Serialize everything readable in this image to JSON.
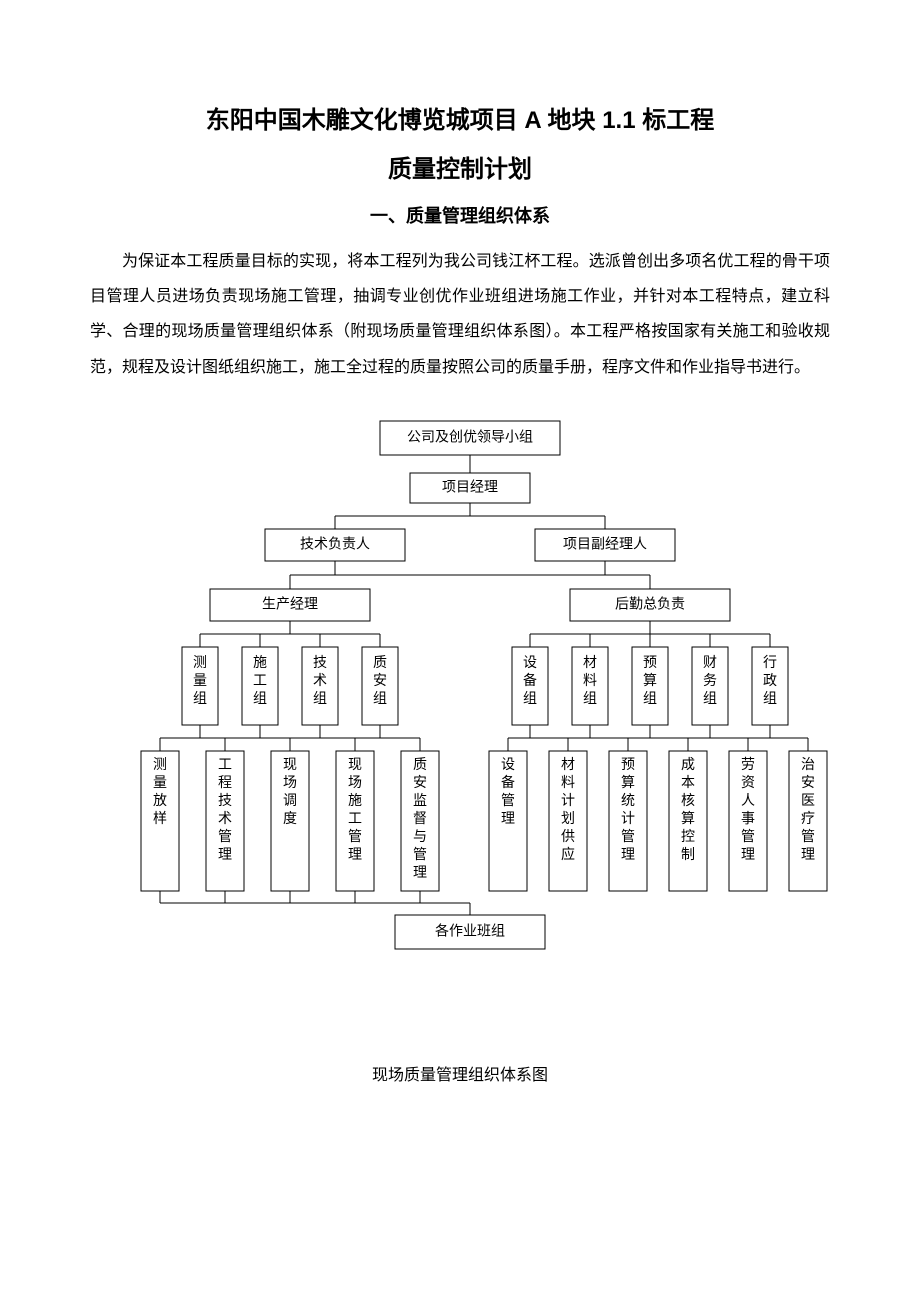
{
  "title_line1": "东阳中国木雕文化博览城项目 A 地块 1.1 标工程",
  "title_line2": "质量控制计划",
  "section_heading": "一、质量管理组织体系",
  "paragraph": "为保证本工程质量目标的实现，将本工程列为我公司钱江杯工程。选派曾创出多项名优工程的骨干项目管理人员进场负责现场施工管理，抽调专业创优作业班组进场施工作业，并针对本工程特点，建立科学、合理的现场质量管理组织体系（附现场质量管理组织体系图）。本工程严格按国家有关施工和验收规范，规程及设计图纸组织施工，施工全过程的质量按照公司的质量手册，程序文件和作业指导书进行。",
  "chart_caption": "现场质量管理组织体系图",
  "org": {
    "type": "tree",
    "stroke": "#000000",
    "stroke_width": 1,
    "fill": "#ffffff",
    "font_size": 14,
    "nodes": {
      "top": "公司及创优领导小组",
      "pm": "项目经理",
      "tech_lead": "技术负责人",
      "deputy_pm": "项目副经理人",
      "prod_mgr": "生产经理",
      "logistics": "后勤总负责",
      "l3_left": [
        "测量组",
        "施工组",
        "技术组",
        "质安组"
      ],
      "l3_right": [
        "设备组",
        "材料组",
        "预算组",
        "财务组",
        "行政组"
      ],
      "l4_left": [
        "测量放样",
        "工程技术管理",
        "现场调度",
        "现场施工管理",
        "质安监督与管理"
      ],
      "l4_right": [
        "设备管理",
        "材料计划供应",
        "预算统计管理",
        "成本核算控制",
        "劳资人事管理",
        "治安医疗管理"
      ],
      "bottom": "各作业班组"
    }
  }
}
